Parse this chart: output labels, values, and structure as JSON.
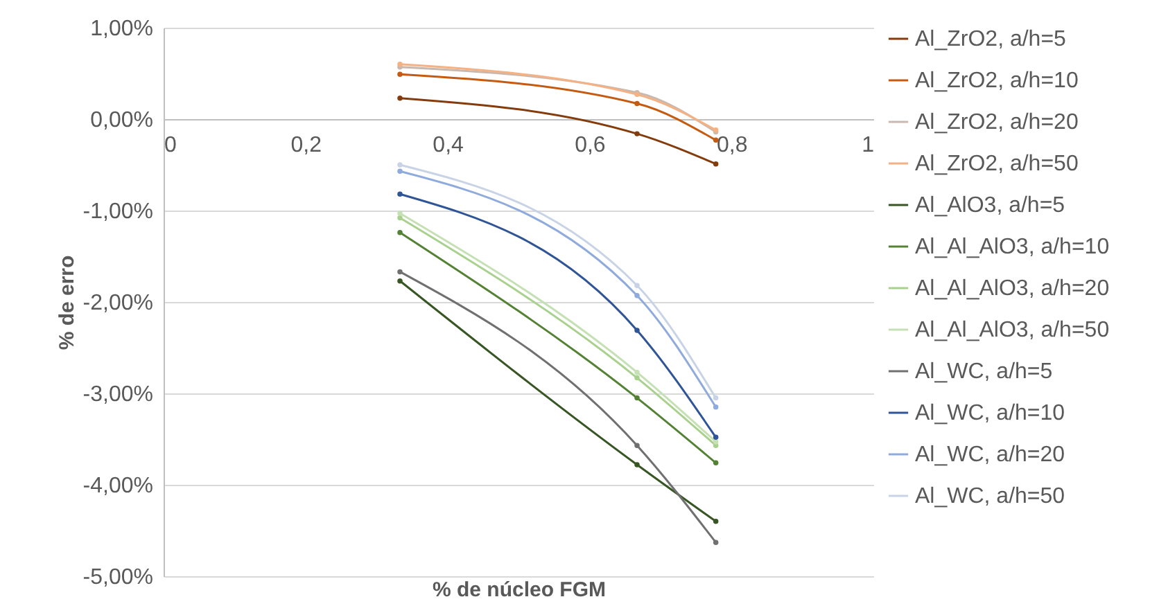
{
  "chart_data": {
    "type": "line",
    "xlabel": "% de núcleo FGM",
    "ylabel": "% de erro",
    "x": [
      0.333,
      0.667,
      0.778
    ],
    "xlim": [
      0,
      1
    ],
    "xticks": [
      0,
      {
        "value": 0.2,
        "label": "0,2"
      },
      {
        "value": 0.4,
        "label": "0,4"
      },
      {
        "value": 0.6,
        "label": "0,6"
      },
      {
        "value": 0.8,
        "label": "0,8"
      },
      1
    ],
    "ylim": [
      -5,
      1
    ],
    "yticks": [
      {
        "value": -5,
        "label": "-5,00%"
      },
      {
        "value": -4,
        "label": "-4,00%"
      },
      {
        "value": -3,
        "label": "-3,00%"
      },
      {
        "value": -2,
        "label": "-2,00%"
      },
      {
        "value": -1,
        "label": "-1,00%"
      },
      {
        "value": 0,
        "label": "0,00%"
      },
      {
        "value": 1,
        "label": "1,00%"
      }
    ],
    "grid": "y",
    "legend": "right",
    "marker": "circle",
    "line_style": "solid",
    "series": [
      {
        "name": "Al_ZrO2, a/h=5",
        "color": "#843c0c",
        "values": [
          0.23,
          -0.16,
          -0.49
        ]
      },
      {
        "name": "Al_ZrO2, a/h=10",
        "color": "#c55a11",
        "values": [
          0.49,
          0.17,
          -0.23
        ]
      },
      {
        "name": "Al_ZrO2, a/h=20",
        "color": "#c9b8ad",
        "values": [
          0.57,
          0.29,
          -0.14
        ]
      },
      {
        "name": "Al_ZrO2, a/h=50",
        "color": "#f4b183",
        "values": [
          0.6,
          0.27,
          -0.12
        ]
      },
      {
        "name": "Al_AlO3, a/h=5",
        "color": "#375623",
        "values": [
          -1.77,
          -3.78,
          -4.4
        ]
      },
      {
        "name": "Al_Al_AlO3, a/h=10",
        "color": "#548235",
        "values": [
          -1.24,
          -3.05,
          -3.76
        ]
      },
      {
        "name": "Al_Al_AlO3, a/h=20",
        "color": "#a9d18e",
        "values": [
          -1.08,
          -2.83,
          -3.57
        ]
      },
      {
        "name": "Al_Al_AlO3, a/h=50",
        "color": "#c5e0b4",
        "values": [
          -1.03,
          -2.77,
          -3.53
        ]
      },
      {
        "name": "Al_WC, a/h=5",
        "color": "#707070",
        "values": [
          -1.67,
          -3.57,
          -4.63
        ]
      },
      {
        "name": "Al_WC, a/h=10",
        "color": "#2f5597",
        "values": [
          -0.82,
          -2.31,
          -3.48
        ]
      },
      {
        "name": "Al_WC, a/h=20",
        "color": "#8faadc",
        "values": [
          -0.57,
          -1.93,
          -3.15
        ]
      },
      {
        "name": "Al_WC, a/h=50",
        "color": "#c8d3e6",
        "values": [
          -0.5,
          -1.82,
          -3.05
        ]
      }
    ]
  }
}
